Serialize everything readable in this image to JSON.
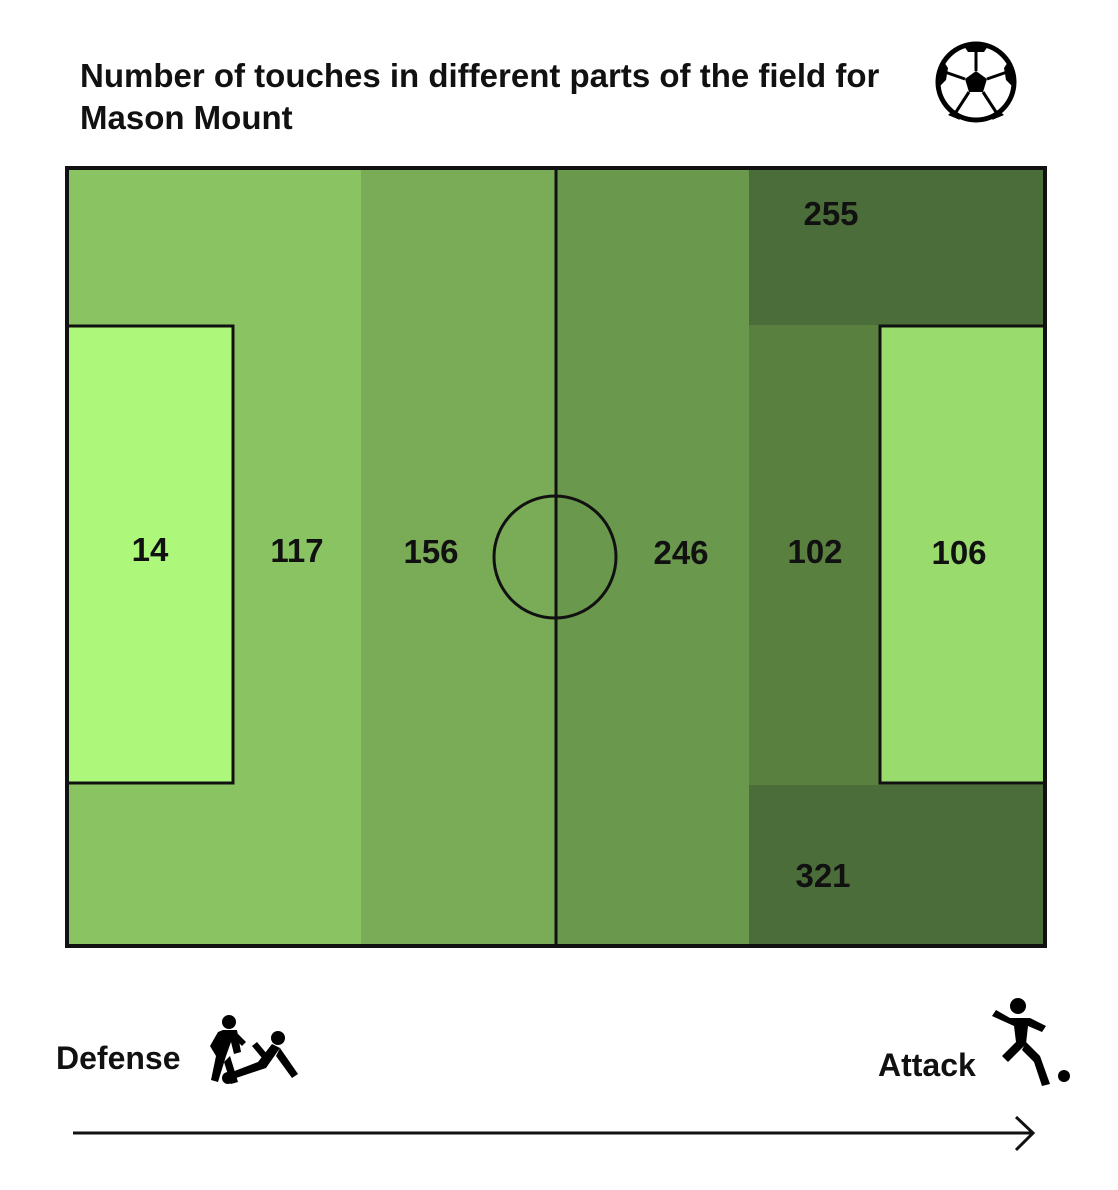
{
  "title": "Number of touches in different parts of the field for Mason Mount",
  "axis": {
    "left_label": "Defense",
    "right_label": "Attack"
  },
  "icons": {
    "top_right": "soccer-ball-icon",
    "defense": "tackle-icon",
    "attack": "kicking-player-icon"
  },
  "colors": {
    "zone_14": "#adf77a",
    "zone_117": "#8ac462",
    "zone_156": "#7aab56",
    "zone_246": "#6a984d",
    "zone_102": "#5a8040",
    "zone_106": "#9adb6e",
    "zone_255": "#4b6d39",
    "zone_321": "#4b6d39",
    "lines": "#111111"
  },
  "chart_data": {
    "type": "heatmap",
    "title": "Number of touches in different parts of the field for Mason Mount",
    "xlabel": "",
    "ylabel": "",
    "direction": [
      "Defense",
      "Attack"
    ],
    "zones": [
      {
        "zone": "own-penalty-area",
        "value": 14
      },
      {
        "zone": "own-defensive-third",
        "value": 117
      },
      {
        "zone": "own-half-middle",
        "value": 156
      },
      {
        "zone": "opponent-half-middle",
        "value": 246
      },
      {
        "zone": "attacking-third-left-wing",
        "value": 255
      },
      {
        "zone": "attacking-third-central",
        "value": 102
      },
      {
        "zone": "attacking-third-right-wing",
        "value": 321
      },
      {
        "zone": "opponent-penalty-area",
        "value": 106
      }
    ]
  }
}
